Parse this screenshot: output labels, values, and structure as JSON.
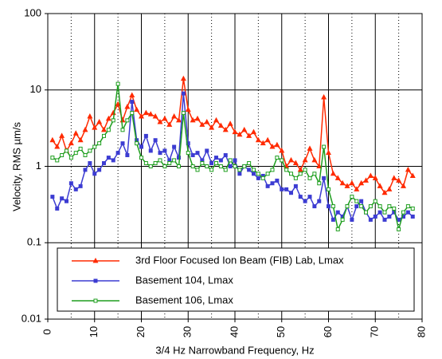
{
  "chart_data": {
    "type": "line",
    "x_label": "3/4 Hz Narrowband Frequency, Hz",
    "y_label": "Velocity, RMS µm/s",
    "log_y": true,
    "grid": true,
    "legend_position": "bottom",
    "xlim": [
      0,
      80
    ],
    "xticks": [
      0,
      10,
      20,
      30,
      40,
      50,
      60,
      70,
      80
    ],
    "x_minor_gridlines": [
      5,
      15,
      25,
      35,
      45,
      55,
      65,
      75
    ],
    "ylim": [
      0.01,
      100
    ],
    "yticks": [
      0.01,
      0.1,
      1,
      10,
      100
    ],
    "x": [
      1,
      2,
      3,
      4,
      5,
      6,
      7,
      8,
      9,
      10,
      11,
      12,
      13,
      14,
      15,
      16,
      17,
      18,
      19,
      20,
      21,
      22,
      23,
      24,
      25,
      26,
      27,
      28,
      29,
      30,
      31,
      32,
      33,
      34,
      35,
      36,
      37,
      38,
      39,
      40,
      41,
      42,
      43,
      44,
      45,
      46,
      47,
      48,
      49,
      50,
      51,
      52,
      53,
      54,
      55,
      56,
      57,
      58,
      59,
      60,
      61,
      62,
      63,
      64,
      65,
      66,
      67,
      68,
      69,
      70,
      71,
      72,
      73,
      74,
      75,
      76,
      77,
      78
    ],
    "series": [
      {
        "name": "3rd Floor Focused Ion Beam (FIB) Lab, Lmax",
        "color": "#ff2a00",
        "marker": "triangle",
        "values": [
          2.2,
          1.8,
          2.5,
          1.6,
          2.0,
          2.7,
          2.2,
          3.0,
          4.5,
          3.2,
          3.8,
          3.0,
          4.2,
          5.0,
          6.5,
          4.0,
          6.0,
          8.5,
          5.5,
          4.5,
          5.0,
          4.8,
          4.5,
          3.8,
          4.2,
          3.5,
          4.5,
          4.0,
          14,
          5.5,
          4.0,
          4.2,
          3.5,
          3.8,
          3.2,
          4.0,
          3.4,
          3.0,
          3.6,
          2.8,
          2.6,
          3.0,
          2.5,
          2.8,
          2.2,
          2.0,
          2.2,
          1.8,
          1.9,
          1.6,
          1.0,
          1.2,
          1.1,
          0.9,
          1.2,
          1.7,
          1.2,
          1.0,
          8.0,
          1.5,
          0.8,
          0.7,
          0.6,
          0.55,
          0.6,
          0.5,
          0.6,
          0.65,
          0.75,
          0.7,
          0.55,
          0.45,
          0.5,
          0.7,
          0.65,
          0.55,
          0.9,
          0.75
        ]
      },
      {
        "name": "Basement 104, Lmax",
        "color": "#3c3cd2",
        "marker": "square",
        "values": [
          0.4,
          0.28,
          0.38,
          0.35,
          0.6,
          0.5,
          0.55,
          0.9,
          1.1,
          0.8,
          0.9,
          1.1,
          1.3,
          1.2,
          1.5,
          2.0,
          1.4,
          7.0,
          2.2,
          1.8,
          2.5,
          1.6,
          2.2,
          1.5,
          1.6,
          1.2,
          1.8,
          1.3,
          9.0,
          2.0,
          1.4,
          1.5,
          1.2,
          1.6,
          1.1,
          1.3,
          1.2,
          1.4,
          1.0,
          1.2,
          0.8,
          1.0,
          0.9,
          0.8,
          0.7,
          0.75,
          0.55,
          0.6,
          0.65,
          0.5,
          0.5,
          0.45,
          0.55,
          0.4,
          0.35,
          0.4,
          0.3,
          0.35,
          0.7,
          0.3,
          0.2,
          0.25,
          0.22,
          0.3,
          0.2,
          0.3,
          0.35,
          0.25,
          0.2,
          0.22,
          0.25,
          0.2,
          0.22,
          0.25,
          0.2,
          0.22,
          0.25,
          0.22
        ]
      },
      {
        "name": "Basement 106, Lmax",
        "color": "#1e9e1e",
        "marker": "open-square",
        "values": [
          1.3,
          1.2,
          1.4,
          1.6,
          1.3,
          1.5,
          1.7,
          1.4,
          1.6,
          1.8,
          2.0,
          2.5,
          3.0,
          4.0,
          12,
          3.0,
          4.0,
          5.0,
          2.0,
          1.3,
          1.1,
          1.0,
          1.1,
          1.2,
          1.0,
          1.1,
          1.2,
          1.0,
          5.0,
          1.5,
          1.0,
          0.9,
          1.1,
          1.0,
          0.9,
          1.1,
          1.0,
          0.9,
          1.2,
          1.0,
          0.9,
          1.0,
          1.1,
          0.9,
          0.8,
          0.7,
          0.8,
          0.9,
          1.3,
          1.2,
          0.9,
          0.8,
          0.7,
          0.8,
          0.9,
          0.7,
          0.8,
          0.6,
          1.8,
          0.5,
          0.3,
          0.15,
          0.2,
          0.3,
          0.4,
          0.35,
          0.3,
          0.25,
          0.3,
          0.35,
          0.3,
          0.25,
          0.3,
          0.28,
          0.15,
          0.25,
          0.3,
          0.28
        ]
      }
    ]
  }
}
